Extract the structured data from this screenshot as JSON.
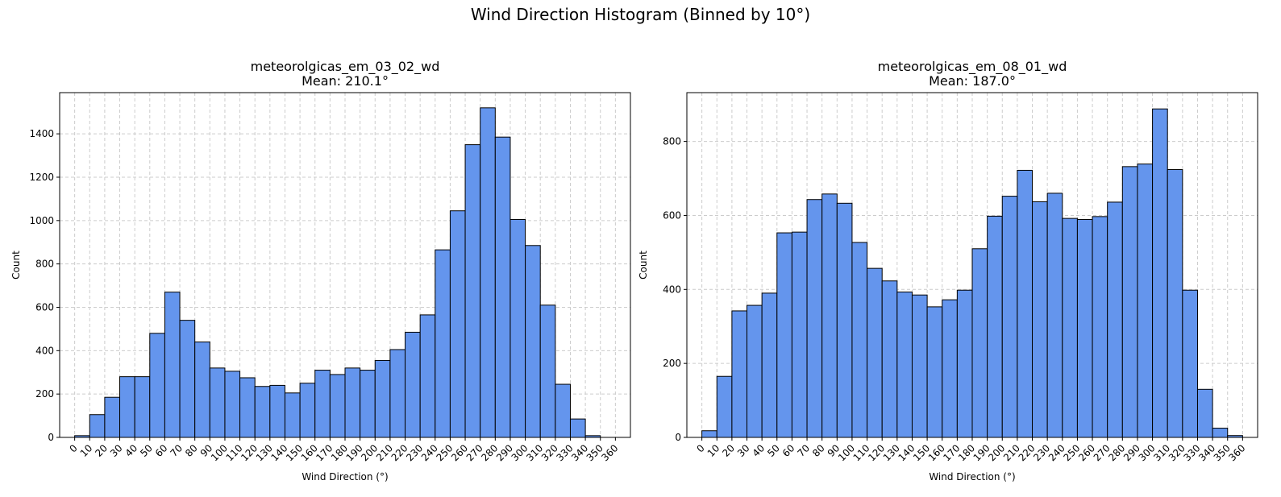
{
  "figure": {
    "title": "Wind Direction Histogram (Binned by 10°)"
  },
  "colors": {
    "bar_fill": "#6495ED",
    "bar_edge": "#000000",
    "grid": "#cccccc"
  },
  "chart_data": [
    {
      "type": "bar",
      "title": "meteorolgicas_em_03_02_wd",
      "subtitle": "Mean: 210.1°",
      "xlabel": "Wind Direction (°)",
      "ylabel": "Count",
      "bin_width": 10,
      "bin_starts": [
        0,
        10,
        20,
        30,
        40,
        50,
        60,
        70,
        80,
        90,
        100,
        110,
        120,
        130,
        140,
        150,
        160,
        170,
        180,
        190,
        200,
        210,
        220,
        230,
        240,
        250,
        260,
        270,
        280,
        290,
        300,
        310,
        320,
        330,
        340,
        350
      ],
      "values": [
        8,
        105,
        185,
        280,
        280,
        480,
        670,
        540,
        440,
        320,
        305,
        275,
        235,
        240,
        205,
        250,
        310,
        290,
        320,
        310,
        355,
        405,
        485,
        565,
        865,
        1045,
        1350,
        1520,
        1385,
        1005,
        885,
        610,
        245,
        85,
        8,
        0
      ],
      "xlim": [
        -10,
        370
      ],
      "ylim": [
        0,
        1590
      ],
      "x_ticks": [
        "0",
        "10",
        "20",
        "30",
        "40",
        "50",
        "60",
        "70",
        "80",
        "90",
        "100",
        "110",
        "120",
        "130",
        "140",
        "150",
        "160",
        "170",
        "180",
        "190",
        "200",
        "210",
        "220",
        "230",
        "240",
        "250",
        "260",
        "270",
        "280",
        "290",
        "300",
        "310",
        "320",
        "330",
        "340",
        "350",
        "360"
      ],
      "y_ticks": [
        0,
        200,
        400,
        600,
        800,
        1000,
        1200,
        1400
      ],
      "grid": true
    },
    {
      "type": "bar",
      "title": "meteorolgicas_em_08_01_wd",
      "subtitle": "Mean: 187.0°",
      "xlabel": "Wind Direction (°)",
      "ylabel": "Count",
      "bin_width": 10,
      "bin_starts": [
        0,
        10,
        20,
        30,
        40,
        50,
        60,
        70,
        80,
        90,
        100,
        110,
        120,
        130,
        140,
        150,
        160,
        170,
        180,
        190,
        200,
        210,
        220,
        230,
        240,
        250,
        260,
        270,
        280,
        290,
        300,
        310,
        320,
        330,
        340,
        350
      ],
      "values": [
        18,
        165,
        342,
        357,
        390,
        553,
        555,
        643,
        658,
        633,
        527,
        457,
        423,
        393,
        385,
        353,
        372,
        398,
        510,
        598,
        652,
        722,
        637,
        660,
        592,
        589,
        597,
        636,
        732,
        739,
        888,
        724,
        398,
        130,
        25,
        5
      ],
      "xlim": [
        -10,
        370
      ],
      "ylim": [
        0,
        932
      ],
      "x_ticks": [
        "0",
        "10",
        "20",
        "30",
        "40",
        "50",
        "60",
        "70",
        "80",
        "90",
        "100",
        "110",
        "120",
        "130",
        "140",
        "150",
        "160",
        "170",
        "180",
        "190",
        "200",
        "210",
        "220",
        "230",
        "240",
        "250",
        "260",
        "270",
        "280",
        "290",
        "300",
        "310",
        "320",
        "330",
        "340",
        "350",
        "360"
      ],
      "y_ticks": [
        0,
        200,
        400,
        600,
        800
      ],
      "grid": true
    }
  ]
}
